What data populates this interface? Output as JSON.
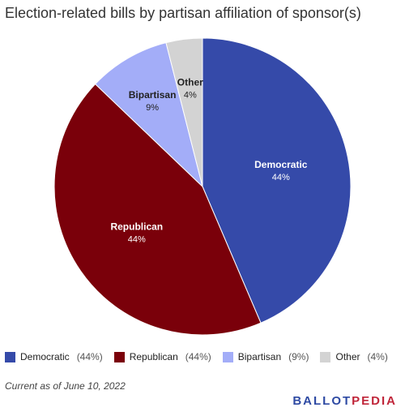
{
  "chart_data": {
    "type": "pie",
    "title": "Election-related bills by partisan affiliation of sponsor(s)",
    "slices": [
      {
        "label": "Democratic",
        "value": 44,
        "display": "44%",
        "legend": "(44%)",
        "color": "#354aa9"
      },
      {
        "label": "Republican",
        "value": 44,
        "display": "44%",
        "legend": "(44%)",
        "color": "#7a000a"
      },
      {
        "label": "Bipartisan",
        "value": 9,
        "display": "9%",
        "legend": "(9%)",
        "color": "#a3adf8"
      },
      {
        "label": "Other",
        "value": 4,
        "display": "4%",
        "legend": "(4%)",
        "color": "#d3d3d3"
      }
    ],
    "start": "top, clockwise",
    "legend_position": "bottom-left"
  },
  "footnote": "Current as of June 10, 2022",
  "logo": {
    "part1": "BALLOT",
    "part2": "PEDIA"
  }
}
